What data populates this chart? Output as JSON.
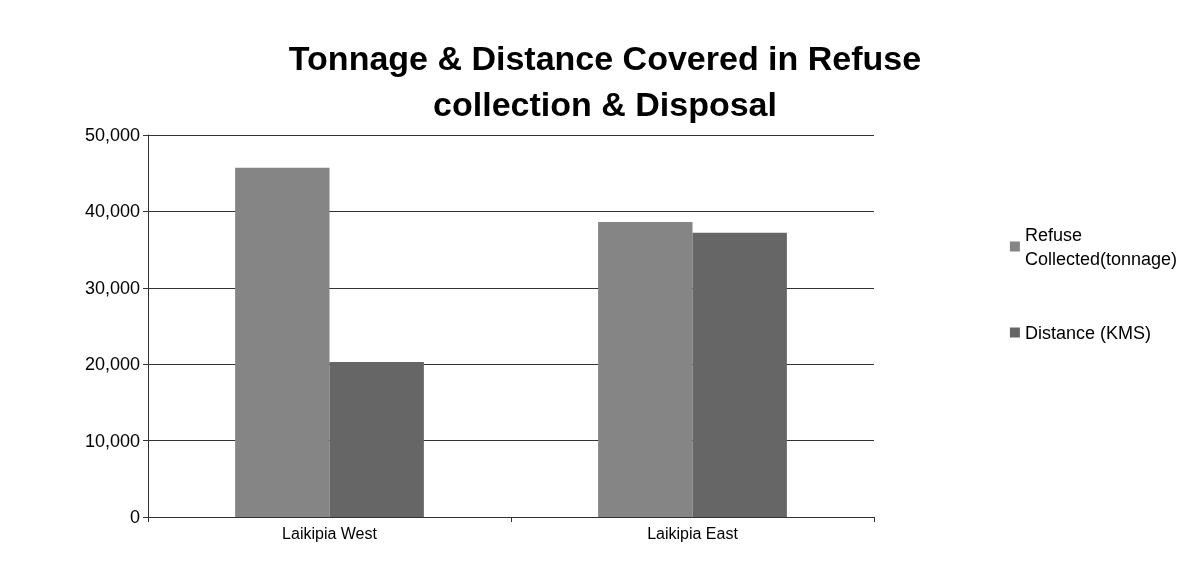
{
  "chart_data": {
    "type": "bar",
    "title": "Tonnage & Distance Covered in Refuse\ncollection & Disposal",
    "categories": [
      "Laikipia West",
      "Laikipia East"
    ],
    "series": [
      {
        "name": "Refuse\nCollected(tonnage)",
        "color": "#858585",
        "values": [
          45700,
          38600
        ]
      },
      {
        "name": "Distance (KMS)",
        "color": "#666666",
        "values": [
          20300,
          37200
        ]
      }
    ],
    "ylim": [
      0,
      50000
    ],
    "yticks": [
      {
        "value": 0,
        "label": "0"
      },
      {
        "value": 10000,
        "label": "10,000"
      },
      {
        "value": 20000,
        "label": "20,000"
      },
      {
        "value": 30000,
        "label": "30,000"
      },
      {
        "value": 40000,
        "label": "40,000"
      },
      {
        "value": 50000,
        "label": "50,000"
      }
    ],
    "grid": "y",
    "legend": "right"
  }
}
